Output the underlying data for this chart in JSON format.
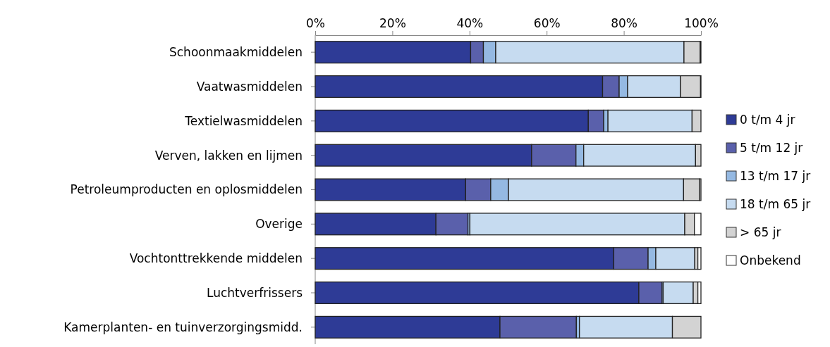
{
  "chart_data": {
    "type": "bar",
    "orientation": "horizontal",
    "stacked": true,
    "categories": [
      "Schoonmaakmiddelen",
      "Vaatwasmiddelen",
      "Textielwasmiddelen",
      "Verven, lakken en lijmen",
      "Petroleumproducten en oplosmiddelen",
      "Overige",
      "Vochtonttrekkende middelen",
      "Luchtverfrissers",
      "Kamerplanten- en tuinverzorgingsmidd."
    ],
    "series": [
      {
        "name": "0 t/m 4 jr",
        "color": "#2e3b96",
        "values": [
          40.3,
          74.5,
          70.8,
          56.1,
          39.0,
          31.3,
          77.4,
          83.9,
          47.9
        ]
      },
      {
        "name": "5 t/m 12 jr",
        "color": "#5a60ab",
        "values": [
          3.3,
          4.3,
          4.0,
          11.5,
          6.5,
          8.3,
          8.9,
          6.0,
          19.8
        ]
      },
      {
        "name": "13 t/m 17 jr",
        "color": "#95b9e2",
        "values": [
          3.2,
          2.2,
          1.1,
          2.0,
          4.6,
          0.5,
          2.0,
          0.3,
          0.8
        ]
      },
      {
        "name": "18 t/m 65 jr",
        "color": "#c6dbf0",
        "values": [
          48.8,
          13.7,
          21.8,
          29.0,
          45.4,
          55.7,
          10.1,
          7.8,
          24.1
        ]
      },
      {
        "name": "> 65 jr",
        "color": "#d3d3d3",
        "values": [
          4.2,
          5.2,
          2.3,
          1.4,
          4.2,
          2.5,
          0.8,
          1.2,
          7.4
        ]
      },
      {
        "name": "Onbekend",
        "color": "#ffffff",
        "values": [
          0.2,
          0.1,
          0,
          0,
          0.3,
          1.7,
          0.8,
          0.8,
          0
        ]
      }
    ],
    "xlim": [
      0,
      100
    ],
    "xticks": [
      {
        "value": 0,
        "label": "0%"
      },
      {
        "value": 20,
        "label": "20%"
      },
      {
        "value": 40,
        "label": "40%"
      },
      {
        "value": 60,
        "label": "60%"
      },
      {
        "value": 80,
        "label": "80%"
      },
      {
        "value": 100,
        "label": "100%"
      }
    ],
    "grid": false,
    "legend": "right"
  }
}
